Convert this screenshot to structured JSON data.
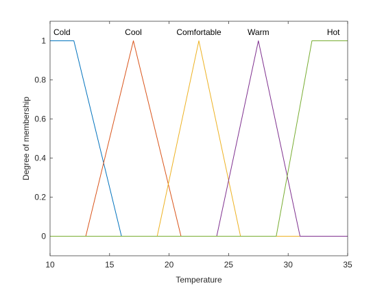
{
  "chart_data": {
    "type": "line",
    "xlabel": "Temperature",
    "ylabel": "Degree of membership",
    "xlim": [
      10,
      35
    ],
    "ylim": [
      -0.1,
      1.1
    ],
    "xticks": [
      10,
      15,
      20,
      25,
      30,
      35
    ],
    "yticks": [
      0,
      0.2,
      0.4,
      0.6,
      0.8,
      1
    ],
    "grid": false,
    "legend": "none",
    "series": [
      {
        "name": "Cold",
        "color": "#0072BD",
        "label_x": 11,
        "points": [
          [
            10,
            1
          ],
          [
            12,
            1
          ],
          [
            16,
            0
          ],
          [
            35,
            0
          ]
        ]
      },
      {
        "name": "Cool",
        "color": "#D95319",
        "label_x": 17,
        "points": [
          [
            10,
            0
          ],
          [
            13,
            0
          ],
          [
            17,
            1
          ],
          [
            21,
            0
          ],
          [
            35,
            0
          ]
        ]
      },
      {
        "name": "Comfortable",
        "color": "#EDB120",
        "label_x": 22.5,
        "points": [
          [
            10,
            0
          ],
          [
            19,
            0
          ],
          [
            22.5,
            1
          ],
          [
            26,
            0
          ],
          [
            35,
            0
          ]
        ]
      },
      {
        "name": "Warm",
        "color": "#7E2F8E",
        "label_x": 27.5,
        "points": [
          [
            10,
            0
          ],
          [
            24,
            0
          ],
          [
            27.5,
            1
          ],
          [
            31,
            0
          ],
          [
            35,
            0
          ]
        ]
      },
      {
        "name": "Hot",
        "color": "#77AC30",
        "label_x": 33.8,
        "points": [
          [
            10,
            0
          ],
          [
            29,
            0
          ],
          [
            32,
            1
          ],
          [
            35,
            1
          ]
        ]
      }
    ]
  }
}
